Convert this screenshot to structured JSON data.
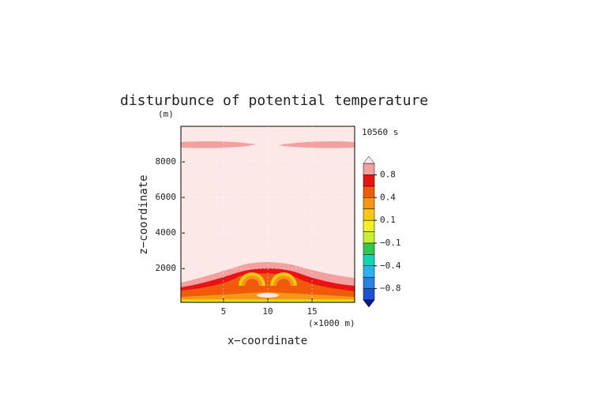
{
  "chart_data": {
    "type": "contour",
    "title": "disturbunce of potential temperature",
    "ylabel_unit": "(m)",
    "time_label": "10560 s",
    "xlabel": "x−coordinate",
    "ylabel": "z−coordinate",
    "xlabel_unit": "(×1000 m)",
    "xlim": [
      0.2,
      19.8
    ],
    "xticks": [
      5,
      10,
      15
    ],
    "ylim": [
      100,
      10000
    ],
    "yticks": [
      2000,
      4000,
      6000,
      8000
    ],
    "colorbar": {
      "boundaries": [
        -1,
        -0.8,
        -0.6,
        -0.4,
        -0.2,
        -0.1,
        0,
        0.1,
        0.2,
        0.4,
        0.6,
        0.8,
        1.0
      ],
      "colors": [
        "#0a1496",
        "#1e50d2",
        "#2882e6",
        "#28b4f0",
        "#14d2b4",
        "#32c850",
        "#c8f032",
        "#f0f028",
        "#f5c814",
        "#f59614",
        "#f05a0a",
        "#e81414",
        "#f4a0a0",
        "#fde8e8"
      ],
      "ticks": [
        0.8,
        0.4,
        0.1,
        {
          "value": -0.1,
          "label": "−0.1"
        },
        {
          "value": -0.4,
          "label": "−0.4"
        },
        {
          "value": -0.8,
          "label": "−0.8"
        }
      ]
    }
  }
}
